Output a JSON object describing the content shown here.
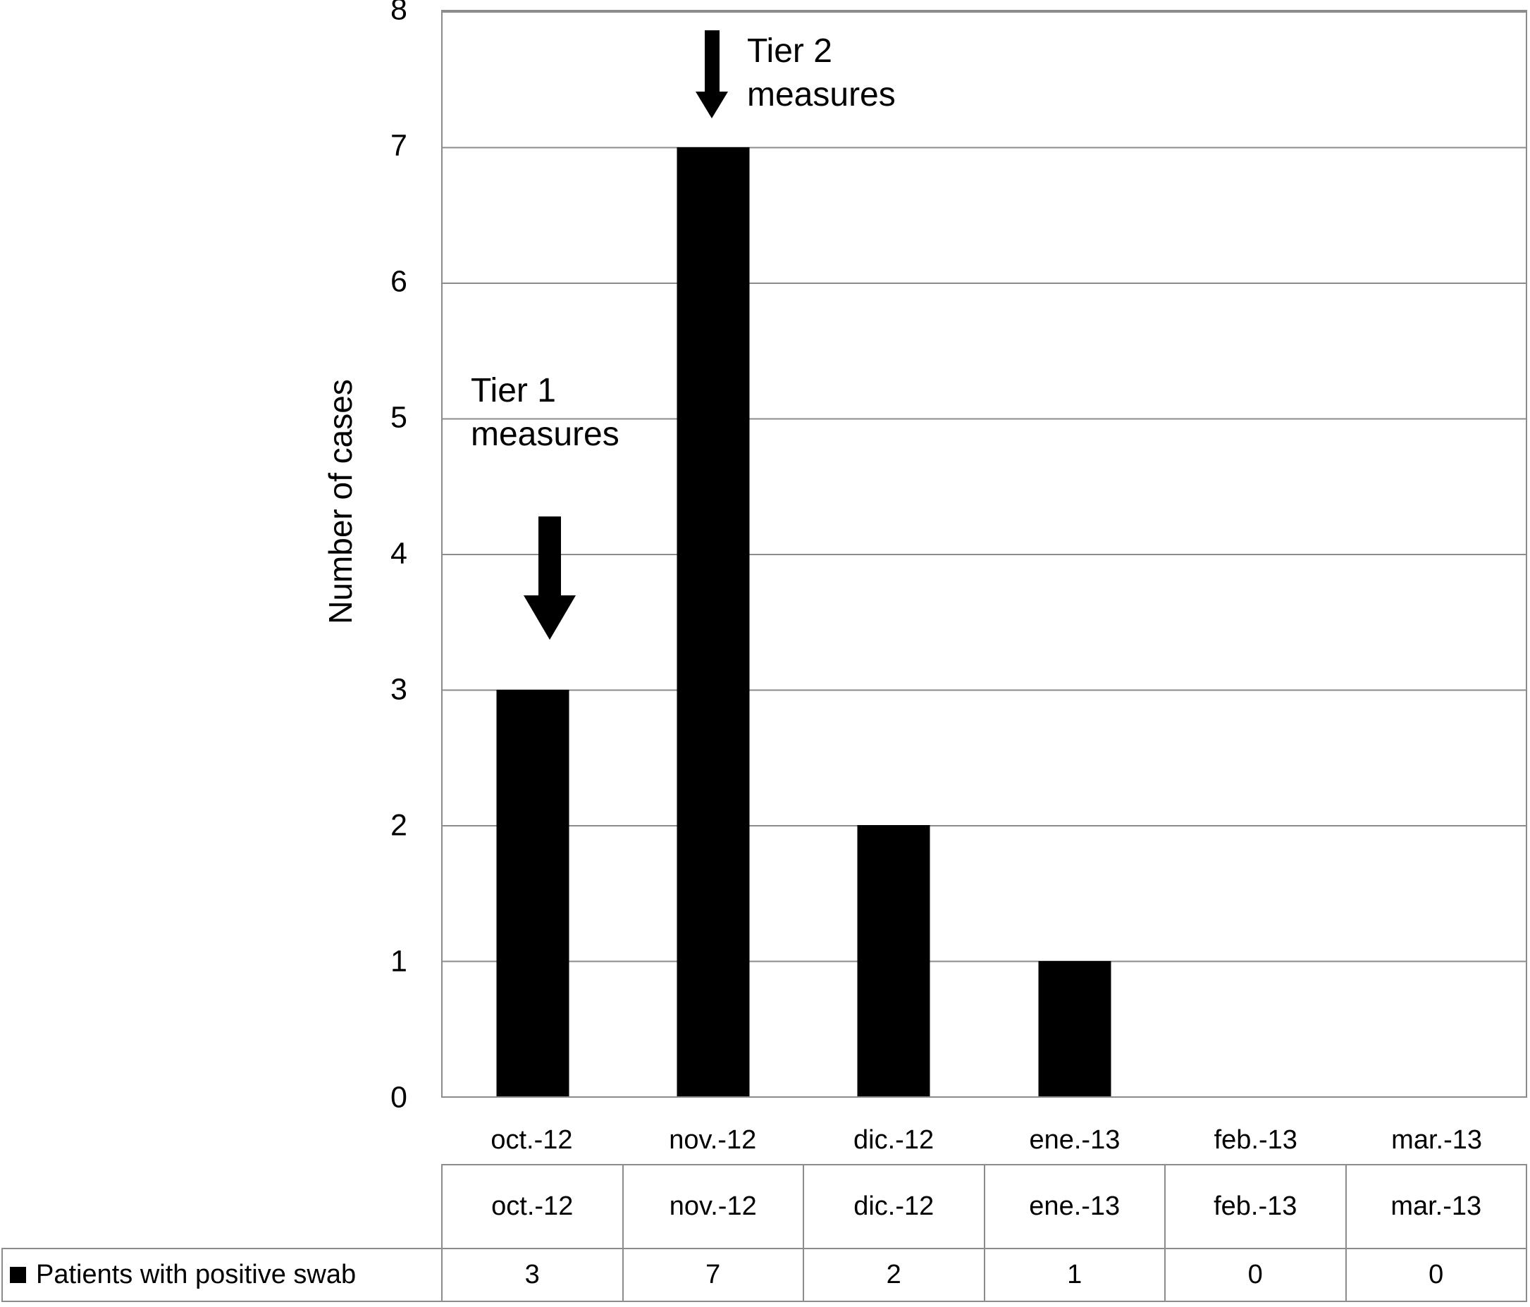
{
  "figure": {
    "background": "#ffffff",
    "bar_color": "#000000",
    "grid_color": "#8c8c8c",
    "text_color": "#000000"
  },
  "chart_data": {
    "type": "bar",
    "title": "",
    "categories": [
      "oct.-12",
      "nov.-12",
      "dic.-12",
      "ene.-13",
      "feb.-13",
      "mar.-13"
    ],
    "series": [
      {
        "name": "Patients with positive swab",
        "values": [
          3,
          7,
          2,
          1,
          0,
          0
        ]
      }
    ],
    "xlabel": "",
    "ylabel": "Number of cases",
    "ylim": [
      0,
      8
    ],
    "yticks": [
      0,
      1,
      2,
      3,
      4,
      5,
      6,
      7,
      8
    ],
    "grid": "horizontal",
    "legend_position": "bottom-table",
    "annotations": [
      {
        "lines": [
          "Tier 1",
          "measures"
        ],
        "arrow": "down",
        "target_category": "oct.-12"
      },
      {
        "lines": [
          "Tier 2",
          "measures"
        ],
        "arrow": "down",
        "target_category": "nov.-12"
      }
    ]
  },
  "data_table": {
    "header_row": [
      "oct.-12",
      "nov.-12",
      "dic.-12",
      "ene.-13",
      "feb.-13",
      "mar.-13"
    ],
    "legend_marker": "black-square",
    "legend_label": "Patients with positive swab",
    "values": [
      "3",
      "7",
      "2",
      "1",
      "0",
      "0"
    ]
  }
}
